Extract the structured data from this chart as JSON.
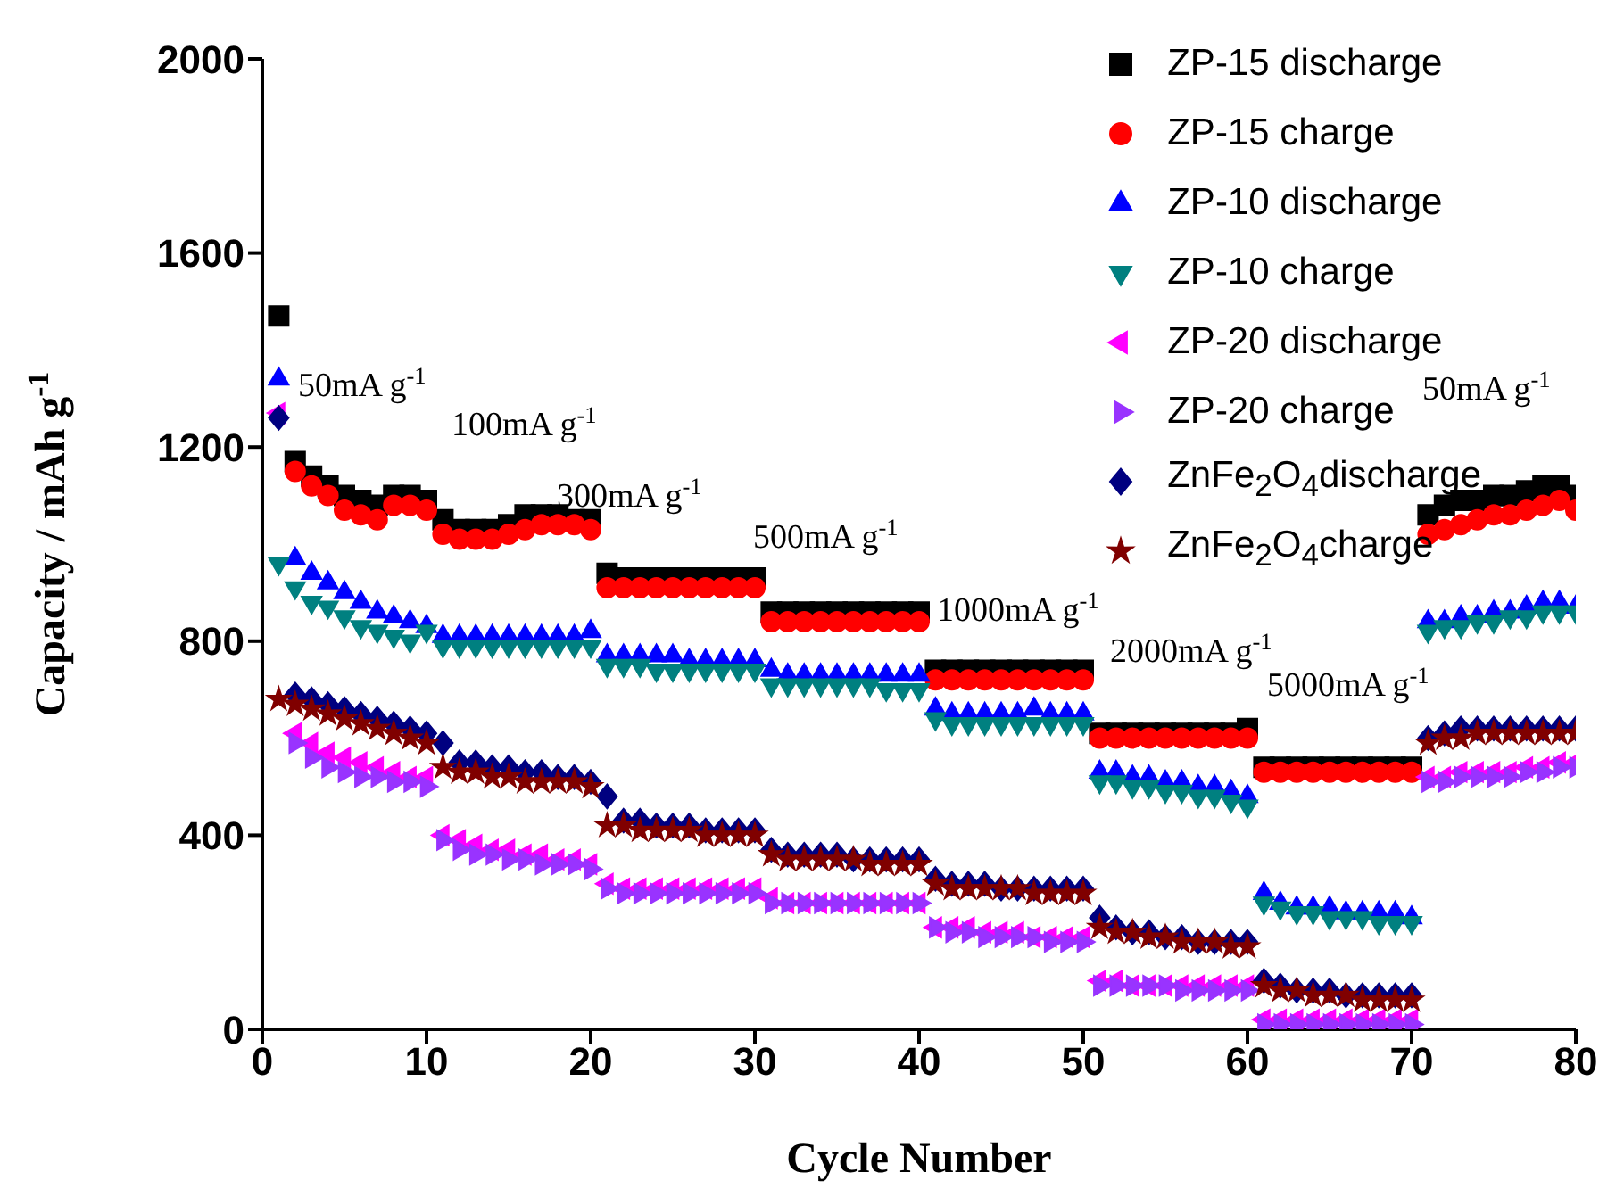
{
  "chart_data": {
    "type": "scatter",
    "xlabel": "Cycle Number",
    "ylabel": "Capacity / mAh g$^{-1}$",
    "xlim": [
      0,
      80
    ],
    "xticks": [
      0,
      10,
      20,
      30,
      40,
      50,
      60,
      70,
      80
    ],
    "ylim": [
      0,
      2000
    ],
    "yticks": [
      0,
      400,
      800,
      1200,
      1600,
      2000
    ],
    "grid": false,
    "legend": "top right",
    "x": [
      1,
      2,
      3,
      4,
      5,
      6,
      7,
      8,
      9,
      10,
      11,
      12,
      13,
      14,
      15,
      16,
      17,
      18,
      19,
      20,
      21,
      22,
      23,
      24,
      25,
      26,
      27,
      28,
      29,
      30,
      31,
      32,
      33,
      34,
      35,
      36,
      37,
      38,
      39,
      40,
      41,
      42,
      43,
      44,
      45,
      46,
      47,
      48,
      49,
      50,
      51,
      52,
      53,
      54,
      55,
      56,
      57,
      58,
      59,
      60,
      61,
      62,
      63,
      64,
      65,
      66,
      67,
      68,
      69,
      70,
      71,
      72,
      73,
      74,
      75,
      76,
      77,
      78,
      79,
      80
    ],
    "series": [
      {
        "name": "ZP-15 discharge",
        "color": "#000000",
        "marker": "square",
        "values": [
          1470,
          1170,
          1140,
          1120,
          1100,
          1090,
          1080,
          1100,
          1100,
          1090,
          1050,
          1030,
          1030,
          1030,
          1040,
          1060,
          1060,
          1060,
          1050,
          1050,
          940,
          930,
          930,
          930,
          930,
          930,
          930,
          930,
          930,
          930,
          860,
          860,
          860,
          860,
          860,
          860,
          860,
          860,
          860,
          860,
          740,
          740,
          740,
          740,
          740,
          740,
          740,
          740,
          740,
          740,
          610,
          610,
          610,
          610,
          610,
          610,
          610,
          610,
          610,
          620,
          540,
          540,
          540,
          540,
          540,
          540,
          540,
          540,
          540,
          540,
          1060,
          1080,
          1090,
          1090,
          1100,
          1100,
          1110,
          1120,
          1120,
          1100
        ]
      },
      {
        "name": "ZP-15 charge",
        "color": "#ff0000",
        "marker": "circle",
        "values": [
          null,
          1150,
          1120,
          1100,
          1070,
          1060,
          1050,
          1080,
          1080,
          1070,
          1020,
          1010,
          1010,
          1010,
          1020,
          1030,
          1040,
          1040,
          1040,
          1030,
          910,
          910,
          910,
          910,
          910,
          910,
          910,
          910,
          910,
          910,
          840,
          840,
          840,
          840,
          840,
          840,
          840,
          840,
          840,
          840,
          720,
          720,
          720,
          720,
          720,
          720,
          720,
          720,
          720,
          720,
          600,
          600,
          600,
          600,
          600,
          600,
          600,
          600,
          600,
          600,
          530,
          530,
          530,
          530,
          530,
          530,
          530,
          530,
          530,
          530,
          1020,
          1030,
          1040,
          1050,
          1060,
          1060,
          1070,
          1080,
          1090,
          1070
        ]
      },
      {
        "name": "ZP-10 discharge",
        "color": "#0000ff",
        "marker": "triangle",
        "values": [
          1340,
          970,
          940,
          920,
          900,
          880,
          860,
          850,
          840,
          830,
          810,
          810,
          810,
          810,
          810,
          810,
          810,
          810,
          810,
          820,
          770,
          770,
          770,
          770,
          770,
          760,
          760,
          760,
          760,
          760,
          740,
          730,
          730,
          730,
          730,
          730,
          730,
          730,
          730,
          730,
          660,
          650,
          650,
          650,
          650,
          650,
          660,
          650,
          650,
          650,
          530,
          530,
          520,
          520,
          510,
          510,
          500,
          500,
          490,
          480,
          280,
          260,
          250,
          250,
          250,
          240,
          240,
          240,
          240,
          230,
          840,
          840,
          850,
          850,
          860,
          860,
          870,
          880,
          880,
          870
        ]
      },
      {
        "name": "ZP-10 charge",
        "color": "#008080",
        "marker": "triangle-down",
        "values": [
          960,
          910,
          880,
          870,
          850,
          830,
          820,
          810,
          800,
          820,
          790,
          790,
          790,
          790,
          790,
          790,
          790,
          790,
          790,
          790,
          750,
          750,
          750,
          740,
          740,
          740,
          740,
          740,
          740,
          740,
          710,
          710,
          710,
          710,
          710,
          710,
          710,
          700,
          700,
          700,
          640,
          630,
          630,
          630,
          630,
          630,
          630,
          630,
          630,
          630,
          510,
          510,
          500,
          500,
          490,
          490,
          480,
          480,
          470,
          460,
          260,
          250,
          240,
          240,
          230,
          230,
          230,
          220,
          220,
          220,
          820,
          830,
          830,
          840,
          840,
          850,
          850,
          860,
          860,
          860
        ]
      },
      {
        "name": "ZP-20 discharge",
        "color": "#ff00ff",
        "marker": "triangle-left",
        "values": [
          1270,
          610,
          590,
          570,
          560,
          550,
          540,
          530,
          520,
          520,
          400,
          390,
          380,
          370,
          370,
          360,
          360,
          350,
          350,
          340,
          300,
          290,
          290,
          290,
          290,
          290,
          290,
          290,
          290,
          290,
          270,
          260,
          260,
          260,
          260,
          260,
          260,
          260,
          260,
          260,
          210,
          210,
          210,
          200,
          200,
          200,
          190,
          190,
          190,
          190,
          100,
          100,
          90,
          90,
          90,
          90,
          90,
          90,
          90,
          90,
          20,
          20,
          20,
          20,
          20,
          20,
          20,
          20,
          20,
          20,
          520,
          520,
          530,
          530,
          530,
          530,
          540,
          540,
          550,
          550
        ]
      },
      {
        "name": "ZP-20 charge",
        "color": "#9933ff",
        "marker": "triangle-right",
        "values": [
          null,
          590,
          560,
          540,
          530,
          520,
          520,
          510,
          510,
          500,
          390,
          370,
          360,
          360,
          350,
          350,
          340,
          340,
          340,
          330,
          290,
          280,
          280,
          280,
          280,
          280,
          280,
          280,
          280,
          280,
          260,
          260,
          260,
          260,
          260,
          260,
          260,
          260,
          260,
          260,
          210,
          200,
          200,
          190,
          190,
          190,
          190,
          180,
          180,
          180,
          90,
          90,
          90,
          90,
          90,
          80,
          80,
          80,
          80,
          80,
          10,
          10,
          10,
          10,
          10,
          10,
          10,
          10,
          10,
          10,
          510,
          510,
          520,
          520,
          520,
          520,
          530,
          530,
          540,
          540
        ]
      },
      {
        "name": "ZnFe$_{2}$O$_{4}$discharge",
        "color": "#000080",
        "marker": "diamond",
        "values": [
          1260,
          690,
          680,
          670,
          660,
          650,
          640,
          630,
          620,
          610,
          590,
          550,
          550,
          540,
          540,
          530,
          530,
          520,
          520,
          510,
          480,
          430,
          430,
          420,
          420,
          420,
          410,
          410,
          410,
          410,
          370,
          360,
          360,
          360,
          360,
          350,
          350,
          350,
          350,
          350,
          310,
          300,
          300,
          300,
          290,
          290,
          290,
          290,
          290,
          290,
          230,
          210,
          200,
          200,
          190,
          190,
          180,
          180,
          180,
          180,
          100,
          90,
          80,
          80,
          80,
          70,
          70,
          70,
          70,
          70,
          600,
          610,
          620,
          620,
          620,
          620,
          620,
          620,
          620,
          620
        ]
      },
      {
        "name": "ZnFe$_{2}$O$_{4}$charge",
        "color": "#800000",
        "marker": "star",
        "values": [
          680,
          670,
          660,
          650,
          640,
          630,
          620,
          610,
          600,
          590,
          540,
          530,
          530,
          520,
          520,
          510,
          510,
          510,
          510,
          500,
          420,
          420,
          410,
          410,
          410,
          410,
          400,
          400,
          400,
          400,
          360,
          350,
          350,
          350,
          350,
          350,
          340,
          340,
          340,
          340,
          300,
          290,
          290,
          290,
          290,
          290,
          280,
          280,
          280,
          280,
          210,
          200,
          200,
          190,
          190,
          180,
          180,
          180,
          170,
          170,
          90,
          80,
          80,
          70,
          70,
          70,
          60,
          60,
          60,
          60,
          590,
          600,
          600,
          610,
          610,
          610,
          610,
          610,
          610,
          610
        ]
      }
    ],
    "annotations": [
      "50mA g$^{-1}$",
      "100mA g$^{-1}$",
      "300mA g$^{-1}$",
      "500mA g$^{-1}$",
      "1000mA g$^{-1}$",
      "2000mA g$^{-1}$",
      "5000mA g$^{-1}$",
      "50mA g$^{-1}$"
    ]
  }
}
